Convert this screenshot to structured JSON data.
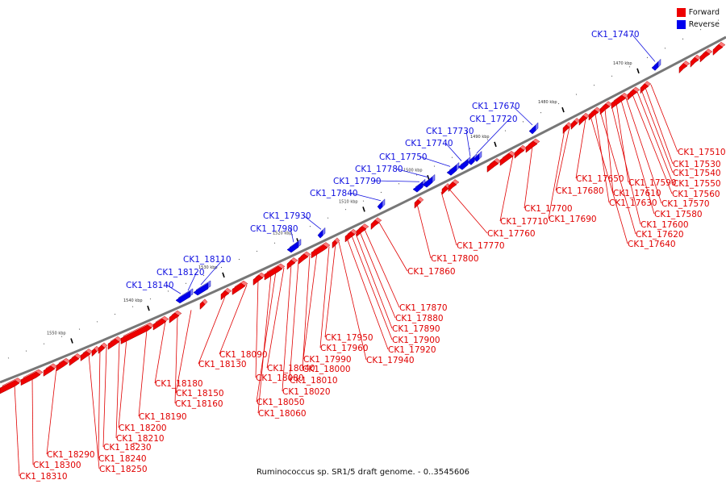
{
  "caption": "Ruminococcus sp. SR1/5 draft genome. - 0..3545606",
  "legend": [
    {
      "label": "Forward",
      "color": "#ee0000"
    },
    {
      "label": "Reverse",
      "color": "#0000ee"
    }
  ],
  "ticks": [
    "1470 kbp",
    "1480 kbp",
    "1490 kbp",
    "1500 kbp",
    "1510 kbp",
    "1520 kbp",
    "1530 kbp",
    "1540 kbp",
    "1550 kbp"
  ],
  "reverse_labels": [
    "CK1_17470",
    "CK1_17670",
    "CK1_17720",
    "CK1_17730",
    "CK1_17740",
    "CK1_17750",
    "CK1_17780",
    "CK1_17790",
    "CK1_17840",
    "CK1_17930",
    "CK1_17980",
    "CK1_18110",
    "CK1_18120",
    "CK1_18140"
  ],
  "forward_labels": [
    "CK1_17510",
    "CK1_17530",
    "CK1_17540",
    "CK1_17550",
    "CK1_17560",
    "CK1_17570",
    "CK1_17580",
    "CK1_17590",
    "CK1_17600",
    "CK1_17610",
    "CK1_17620",
    "CK1_17630",
    "CK1_17640",
    "CK1_17650",
    "CK1_17680",
    "CK1_17690",
    "CK1_17700",
    "CK1_17710",
    "CK1_17760",
    "CK1_17770",
    "CK1_17800",
    "CK1_17860",
    "CK1_17870",
    "CK1_17880",
    "CK1_17890",
    "CK1_17900",
    "CK1_17920",
    "CK1_17940",
    "CK1_17950",
    "CK1_17960",
    "CK1_17990",
    "CK1_18000",
    "CK1_18010",
    "CK1_18020",
    "CK1_18040",
    "CK1_18050",
    "CK1_18060",
    "CK1_18080",
    "CK1_18090",
    "CK1_18130",
    "CK1_18150",
    "CK1_18160",
    "CK1_18180",
    "CK1_18190",
    "CK1_18200",
    "CK1_18210",
    "CK1_18230",
    "CK1_18240",
    "CK1_18250",
    "CK1_18290",
    "CK1_18300",
    "CK1_18310"
  ]
}
